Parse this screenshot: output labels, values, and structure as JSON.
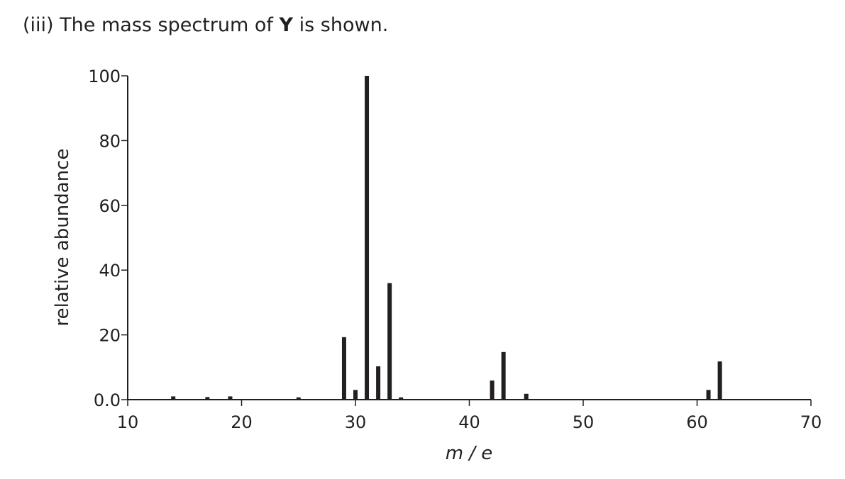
{
  "question": {
    "label": "(iii)",
    "text_before": "The mass spectrum of",
    "bold": "Y",
    "text_after": "is shown."
  },
  "chart_data": {
    "type": "bar",
    "x": [
      14,
      17,
      19,
      25,
      29,
      30,
      31,
      32,
      33,
      34,
      42,
      43,
      45,
      61,
      62
    ],
    "values": [
      1,
      0.8,
      1,
      0.7,
      19.3,
      3,
      100,
      10.3,
      36,
      0.7,
      5.9,
      14.7,
      1.8,
      3,
      11.8
    ],
    "color": "#231f20",
    "xlabel": "m / e",
    "ylabel": "relative abundance",
    "xlim": [
      10,
      70
    ],
    "xticks": [
      10,
      20,
      30,
      40,
      50,
      60,
      70
    ],
    "ylim": [
      0,
      100
    ],
    "yticks": [
      {
        "value": 0,
        "label": "0.0"
      },
      20,
      40,
      60,
      80,
      100
    ],
    "grid": false
  }
}
